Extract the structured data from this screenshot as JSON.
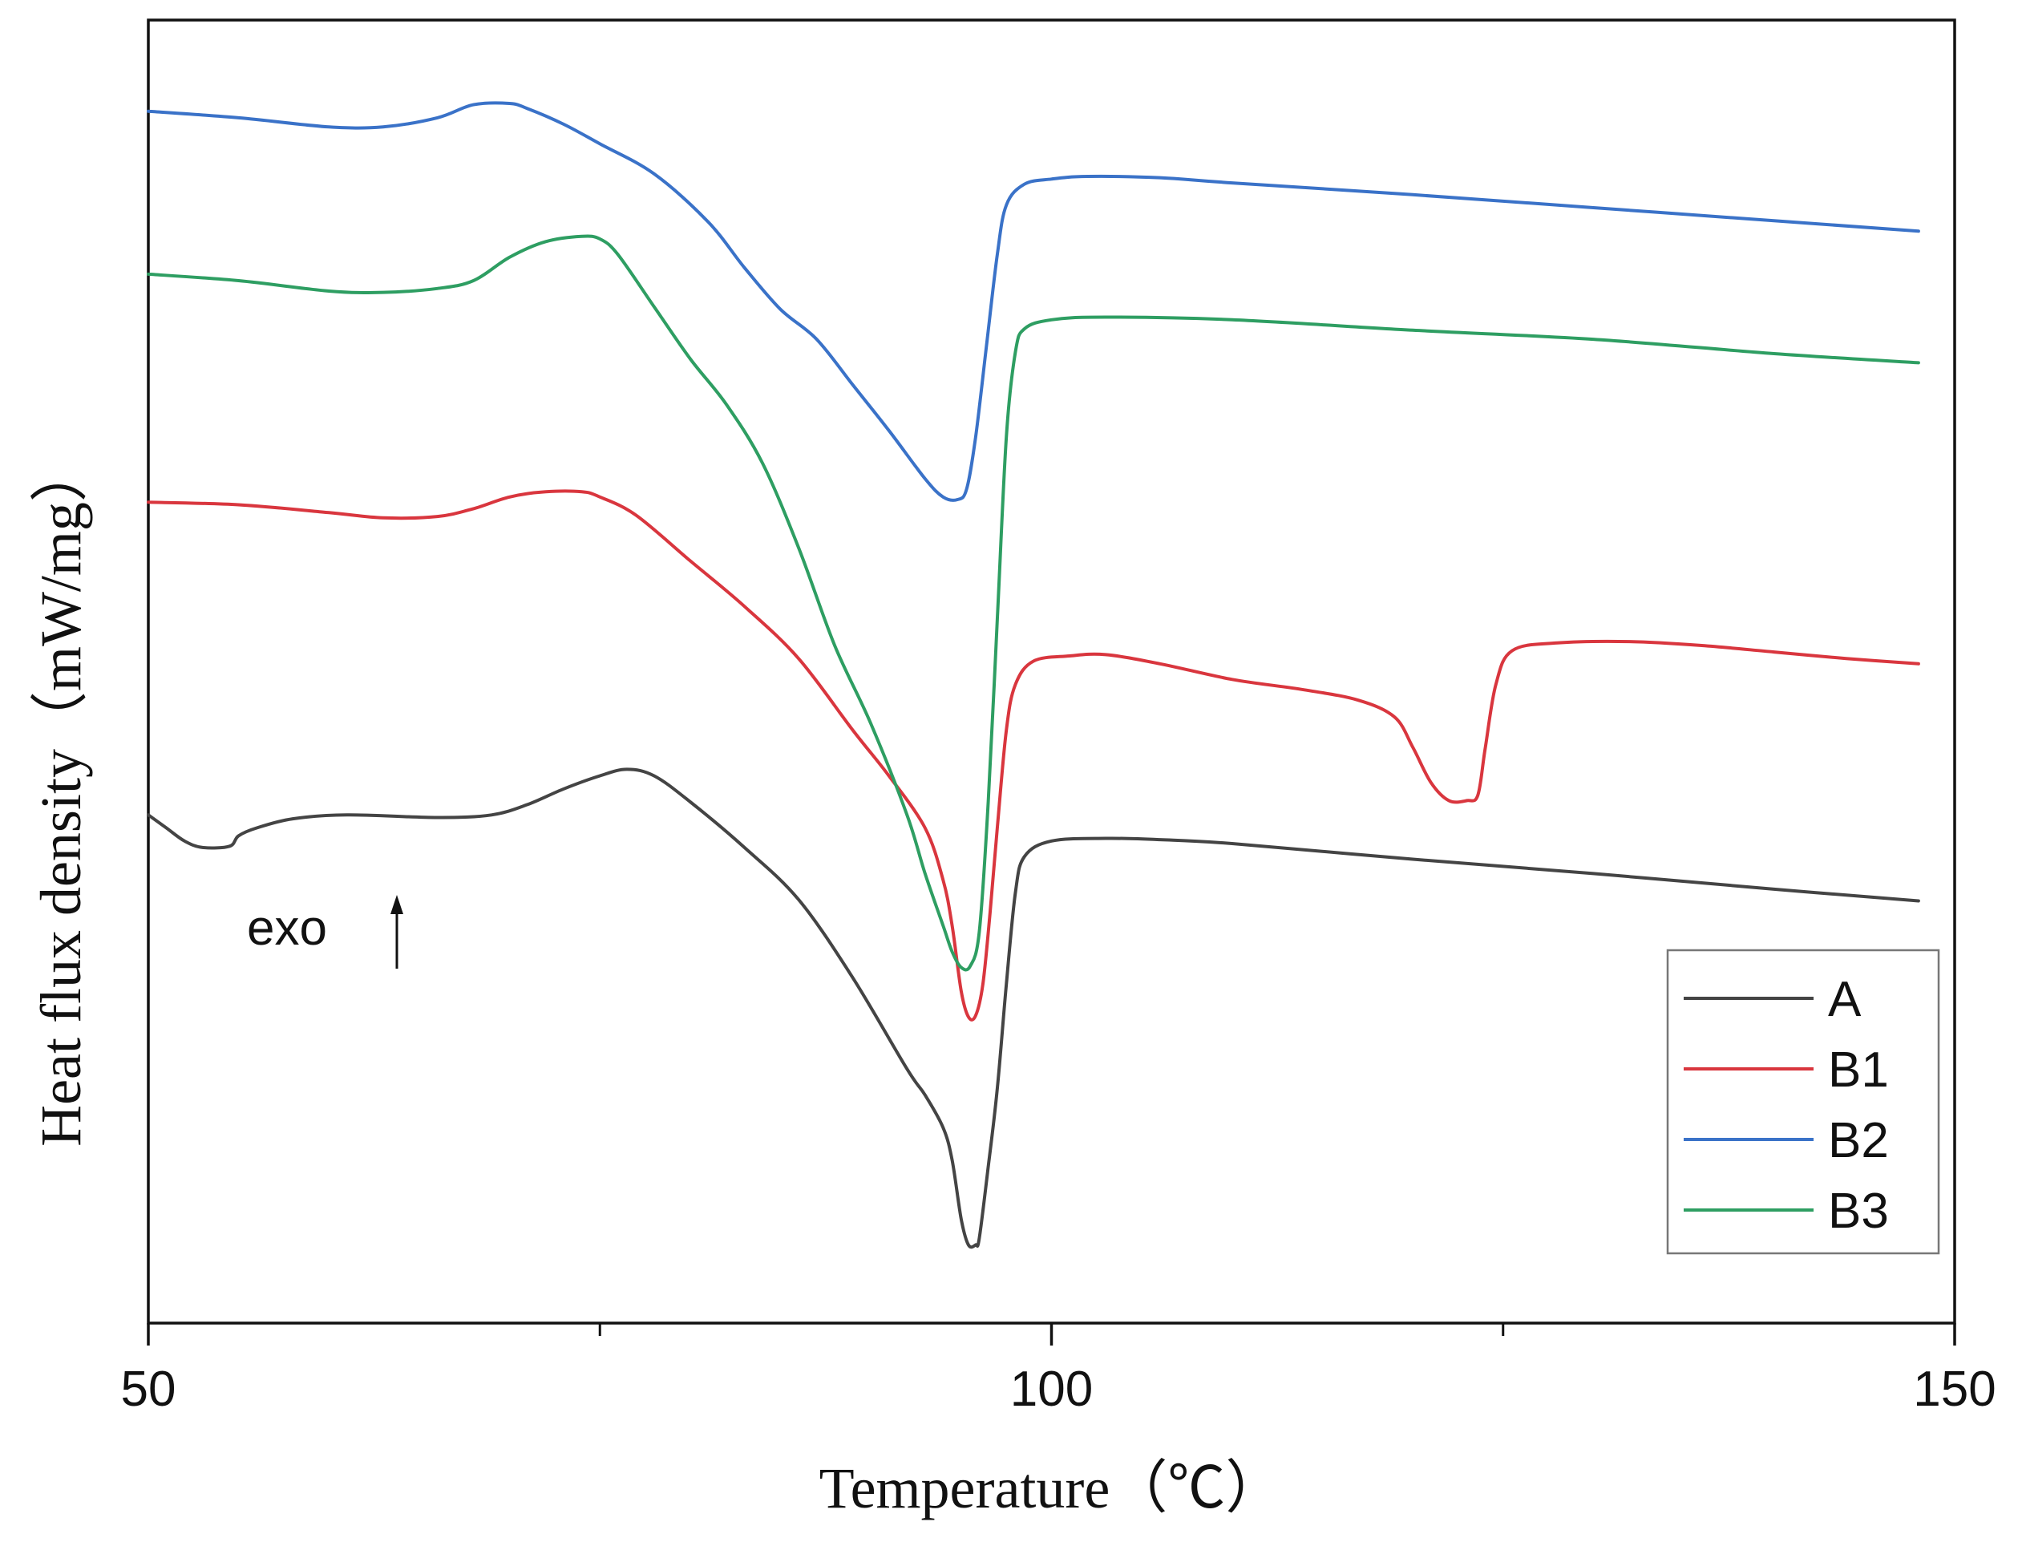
{
  "chart_data": {
    "type": "line",
    "title": "",
    "xlabel": "Temperature（℃）",
    "ylabel": "Heat flux density（mW/mg）",
    "xlim": [
      50,
      150
    ],
    "ylim": [
      0,
      100
    ],
    "x_ticks": [
      50,
      100,
      150
    ],
    "x_minor_ticks": [
      75,
      125
    ],
    "y_ticks_shown": false,
    "grid": false,
    "legend_position": "bottom-right",
    "annotation": "exo",
    "series": [
      {
        "name": "A",
        "color": "#444444",
        "points": [
          [
            50,
            39
          ],
          [
            51,
            38
          ],
          [
            52,
            37
          ],
          [
            53,
            36.5
          ],
          [
            54.5,
            36.6
          ],
          [
            55,
            37.4
          ],
          [
            56,
            38
          ],
          [
            58,
            38.7
          ],
          [
            61,
            39
          ],
          [
            66,
            38.8
          ],
          [
            69,
            39
          ],
          [
            71,
            39.8
          ],
          [
            73,
            41
          ],
          [
            75,
            42
          ],
          [
            76.5,
            42.5
          ],
          [
            78,
            42
          ],
          [
            80,
            40
          ],
          [
            83,
            36.5
          ],
          [
            86,
            32.5
          ],
          [
            89,
            26.5
          ],
          [
            92,
            19.5
          ],
          [
            93,
            17.5
          ],
          [
            94,
            15
          ],
          [
            94.5,
            12.5
          ],
          [
            95,
            8
          ],
          [
            95.4,
            6
          ],
          [
            95.8,
            6
          ],
          [
            96,
            6.5
          ],
          [
            96.5,
            12
          ],
          [
            97,
            18
          ],
          [
            97.5,
            26
          ],
          [
            98,
            33
          ],
          [
            98.5,
            35.8
          ],
          [
            100,
            37
          ],
          [
            103,
            37.2
          ],
          [
            106,
            37.1
          ],
          [
            110,
            36.8
          ],
          [
            120,
            35.6
          ],
          [
            130,
            34.5
          ],
          [
            140,
            33.3
          ],
          [
            148,
            32.4
          ]
        ]
      },
      {
        "name": "B1",
        "color": "#d9363e",
        "points": [
          [
            50,
            63
          ],
          [
            55,
            62.8
          ],
          [
            60,
            62.2
          ],
          [
            63,
            61.8
          ],
          [
            66,
            61.9
          ],
          [
            68,
            62.5
          ],
          [
            70,
            63.4
          ],
          [
            72,
            63.8
          ],
          [
            74,
            63.8
          ],
          [
            75,
            63.4
          ],
          [
            77,
            62
          ],
          [
            80,
            58.5
          ],
          [
            83,
            55
          ],
          [
            86,
            51
          ],
          [
            89,
            45.5
          ],
          [
            91,
            42
          ],
          [
            93,
            38
          ],
          [
            94,
            34
          ],
          [
            94.5,
            30.5
          ],
          [
            95,
            25.5
          ],
          [
            95.4,
            23.5
          ],
          [
            95.8,
            23.6
          ],
          [
            96.2,
            26
          ],
          [
            96.6,
            31.5
          ],
          [
            97,
            38
          ],
          [
            97.5,
            45.5
          ],
          [
            98,
            49
          ],
          [
            99,
            50.8
          ],
          [
            101,
            51.2
          ],
          [
            103,
            51.3
          ],
          [
            106,
            50.6
          ],
          [
            110,
            49.4
          ],
          [
            114,
            48.6
          ],
          [
            117,
            47.8
          ],
          [
            119,
            46.5
          ],
          [
            120,
            44.2
          ],
          [
            121,
            41.5
          ],
          [
            122,
            40.1
          ],
          [
            123,
            40.1
          ],
          [
            123.6,
            40.5
          ],
          [
            124,
            44
          ],
          [
            124.6,
            49
          ],
          [
            125.5,
            51.6
          ],
          [
            128,
            52.2
          ],
          [
            132,
            52.3
          ],
          [
            136,
            52
          ],
          [
            140,
            51.5
          ],
          [
            144,
            51
          ],
          [
            148,
            50.6
          ]
        ]
      },
      {
        "name": "B2",
        "color": "#3a72c8",
        "points": [
          [
            50,
            93
          ],
          [
            55,
            92.5
          ],
          [
            60,
            91.8
          ],
          [
            63,
            91.8
          ],
          [
            66,
            92.5
          ],
          [
            68,
            93.5
          ],
          [
            70,
            93.6
          ],
          [
            71,
            93.2
          ],
          [
            73,
            92
          ],
          [
            75,
            90.5
          ],
          [
            78,
            88.2
          ],
          [
            81,
            84.5
          ],
          [
            83,
            81
          ],
          [
            85,
            77.8
          ],
          [
            87,
            75.5
          ],
          [
            89,
            72
          ],
          [
            91,
            68.5
          ],
          [
            93,
            64.8
          ],
          [
            94,
            63.4
          ],
          [
            94.8,
            63.2
          ],
          [
            95.3,
            64
          ],
          [
            95.8,
            68
          ],
          [
            96.4,
            75
          ],
          [
            97,
            82
          ],
          [
            97.5,
            85.8
          ],
          [
            98.5,
            87.4
          ],
          [
            100,
            87.8
          ],
          [
            102,
            88
          ],
          [
            106,
            87.9
          ],
          [
            110,
            87.5
          ],
          [
            120,
            86.6
          ],
          [
            130,
            85.6
          ],
          [
            140,
            84.6
          ],
          [
            148,
            83.8
          ]
        ]
      },
      {
        "name": "B3",
        "color": "#2e9e62",
        "points": [
          [
            50,
            80.5
          ],
          [
            55,
            80
          ],
          [
            60,
            79.2
          ],
          [
            63,
            79.1
          ],
          [
            66,
            79.4
          ],
          [
            68,
            80
          ],
          [
            70,
            81.8
          ],
          [
            72,
            83
          ],
          [
            74,
            83.4
          ],
          [
            75,
            83.2
          ],
          [
            76,
            82
          ],
          [
            78,
            78
          ],
          [
            80,
            74
          ],
          [
            82,
            70.5
          ],
          [
            84,
            66
          ],
          [
            86,
            59.5
          ],
          [
            88,
            52
          ],
          [
            90,
            46
          ],
          [
            92,
            39
          ],
          [
            93,
            34.5
          ],
          [
            94,
            30.5
          ],
          [
            94.5,
            28.5
          ],
          [
            95,
            27.3
          ],
          [
            95.5,
            27.4
          ],
          [
            96,
            30
          ],
          [
            96.5,
            40
          ],
          [
            97,
            54
          ],
          [
            97.5,
            68
          ],
          [
            98,
            74.5
          ],
          [
            98.5,
            76.3
          ],
          [
            100,
            77
          ],
          [
            103,
            77.2
          ],
          [
            110,
            77
          ],
          [
            120,
            76.2
          ],
          [
            130,
            75.5
          ],
          [
            140,
            74.4
          ],
          [
            148,
            73.7
          ]
        ]
      }
    ]
  }
}
